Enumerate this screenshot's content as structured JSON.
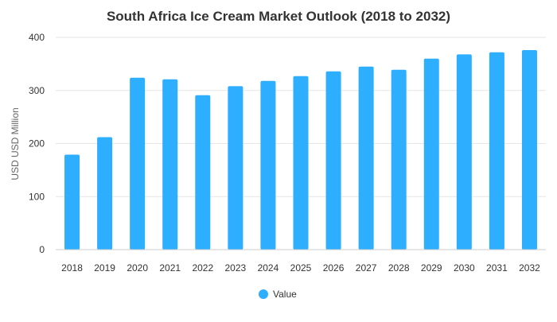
{
  "chart_data": {
    "type": "bar",
    "title": "South Africa Ice Cream Market Outlook (2018 to 2032)",
    "xlabel": "",
    "ylabel": "USD USD Million",
    "categories": [
      "2018",
      "2019",
      "2020",
      "2021",
      "2022",
      "2023",
      "2024",
      "2025",
      "2026",
      "2027",
      "2028",
      "2029",
      "2030",
      "2031",
      "2032"
    ],
    "series": [
      {
        "name": "Value",
        "values": [
          179,
          212,
          324,
          321,
          291,
          308,
          318,
          327,
          336,
          345,
          339,
          360,
          368,
          372,
          376
        ],
        "color": "#2eaeff"
      }
    ],
    "ylim": [
      0,
      400
    ],
    "yticks": [
      0,
      100,
      200,
      300,
      400
    ],
    "grid": true,
    "legend_position": "bottom-center"
  }
}
